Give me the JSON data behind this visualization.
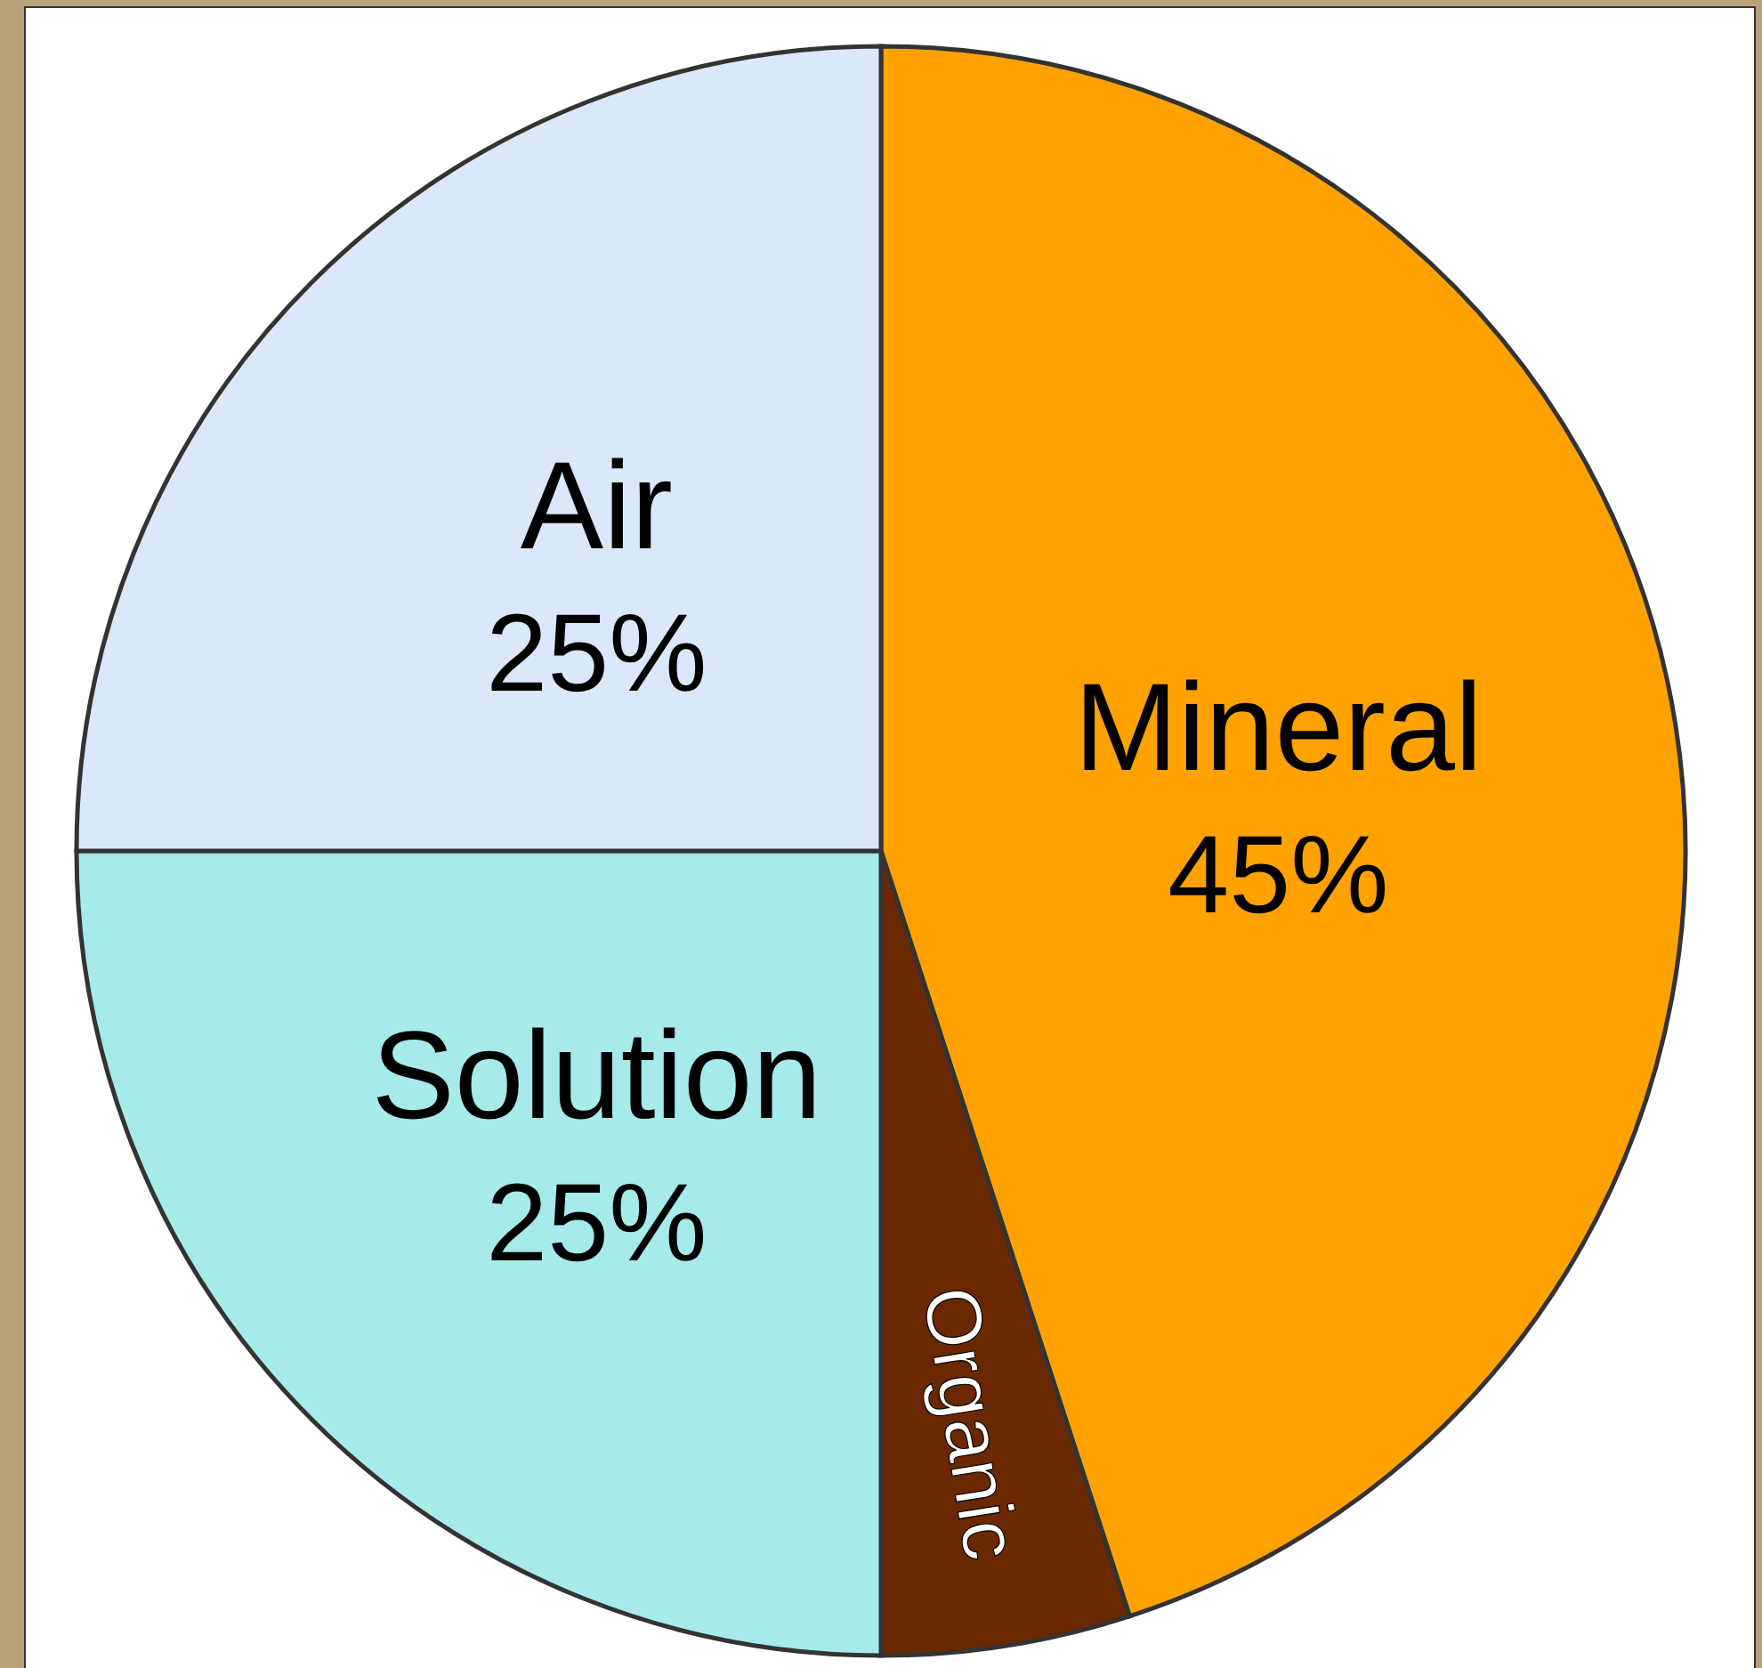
{
  "chart_data": {
    "type": "pie",
    "categories": [
      "Mineral",
      "Organic",
      "Solution",
      "Air"
    ],
    "values": [
      45,
      5,
      25,
      25
    ],
    "value_labels": [
      "45%",
      null,
      "25%",
      "25%"
    ],
    "colors": [
      "#ffa200",
      "#6b2800",
      "#a6eaea",
      "#dbe8fb"
    ]
  }
}
